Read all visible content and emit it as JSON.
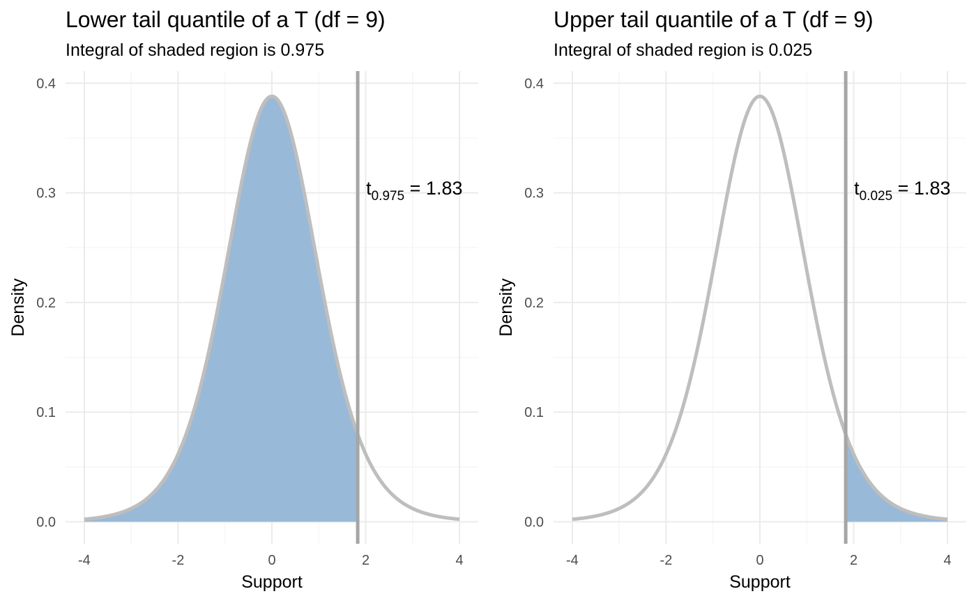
{
  "colors": {
    "fill": "#99b9d8",
    "curve": "#bebebe",
    "vline": "#a6a6a6",
    "grid_major": "#ebebeb",
    "grid_minor": "#f4f4f4"
  },
  "chart_data": [
    {
      "type": "area",
      "distribution": "t",
      "df": 9,
      "title": "Lower tail quantile of a T (df = 9)",
      "subtitle": "Integral of shaded region is 0.975",
      "xlabel": "Support",
      "ylabel": "Density",
      "xlim": [
        -4,
        4
      ],
      "ylim": [
        0,
        0.4
      ],
      "xticks": [
        -4,
        -2,
        0,
        2,
        4
      ],
      "xtick_labels": [
        "-4",
        "-2",
        "0",
        "2",
        "4"
      ],
      "yticks": [
        0,
        0.1,
        0.2,
        0.3,
        0.4
      ],
      "ytick_labels": [
        "0.0",
        "0.1",
        "0.2",
        "0.3",
        "0.4"
      ],
      "grid": true,
      "quantile": 1.83,
      "shade": "lower",
      "annotation": {
        "base": "t",
        "sub": "0.975",
        "rest": " = 1.83"
      }
    },
    {
      "type": "area",
      "distribution": "t",
      "df": 9,
      "title": "Upper tail quantile of a T (df = 9)",
      "subtitle": "Integral of shaded region is 0.025",
      "xlabel": "Support",
      "ylabel": "Density",
      "xlim": [
        -4,
        4
      ],
      "ylim": [
        0,
        0.4
      ],
      "xticks": [
        -4,
        -2,
        0,
        2,
        4
      ],
      "xtick_labels": [
        "-4",
        "-2",
        "0",
        "2",
        "4"
      ],
      "yticks": [
        0,
        0.1,
        0.2,
        0.3,
        0.4
      ],
      "ytick_labels": [
        "0.0",
        "0.1",
        "0.2",
        "0.3",
        "0.4"
      ],
      "grid": true,
      "quantile": 1.83,
      "shade": "upper",
      "annotation": {
        "base": "t",
        "sub": "0.025",
        "rest": " = 1.83"
      }
    }
  ]
}
